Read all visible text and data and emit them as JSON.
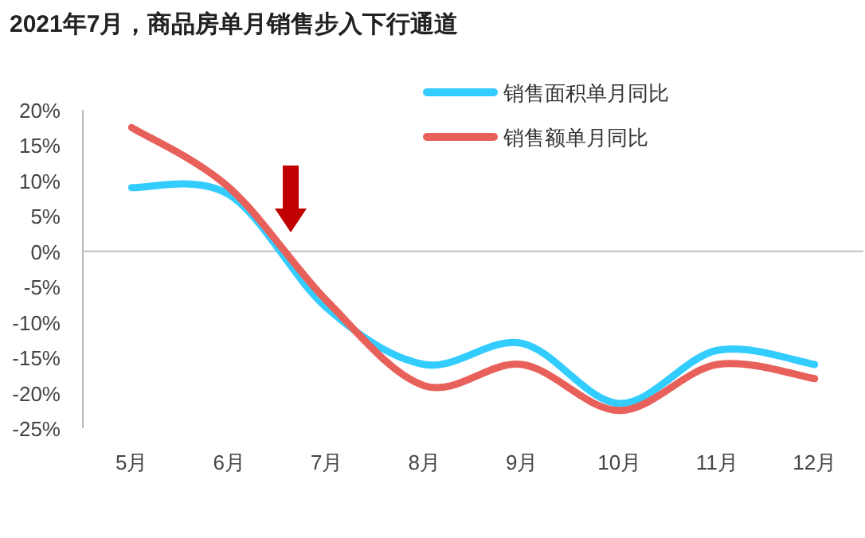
{
  "chart_data": {
    "type": "line",
    "title": "2021年7月，商品房单月销售步入下行通道",
    "categories": [
      "5月",
      "6月",
      "7月",
      "8月",
      "9月",
      "10月",
      "11月",
      "12月"
    ],
    "series": [
      {
        "name": "销售面积单月同比",
        "color": "#33ccff",
        "values": [
          9,
          8,
          -8,
          -16,
          -13,
          -21.5,
          -14,
          -16
        ]
      },
      {
        "name": "销售额单月同比",
        "color": "#e8605a",
        "values": [
          17.5,
          9,
          -7,
          -19,
          -16,
          -22.5,
          -16,
          -18
        ]
      }
    ],
    "ylim": [
      -25,
      20
    ],
    "yticks": [
      {
        "value": 20,
        "label": "20%"
      },
      {
        "value": 15,
        "label": "15%"
      },
      {
        "value": 10,
        "label": "10%"
      },
      {
        "value": 5,
        "label": "5%"
      },
      {
        "value": 0,
        "label": "0%"
      },
      {
        "value": -5,
        "label": "-5%"
      },
      {
        "value": -10,
        "label": "-10%"
      },
      {
        "value": -15,
        "label": "-15%"
      },
      {
        "value": -20,
        "label": "-20%"
      },
      {
        "value": -25,
        "label": "-25%"
      }
    ],
    "ref_lines": [
      {
        "axis": "y",
        "value": 0,
        "color": "#bfbfbf"
      }
    ],
    "grid": false,
    "legend": "top right",
    "marker": "none",
    "line_style": "solid"
  }
}
